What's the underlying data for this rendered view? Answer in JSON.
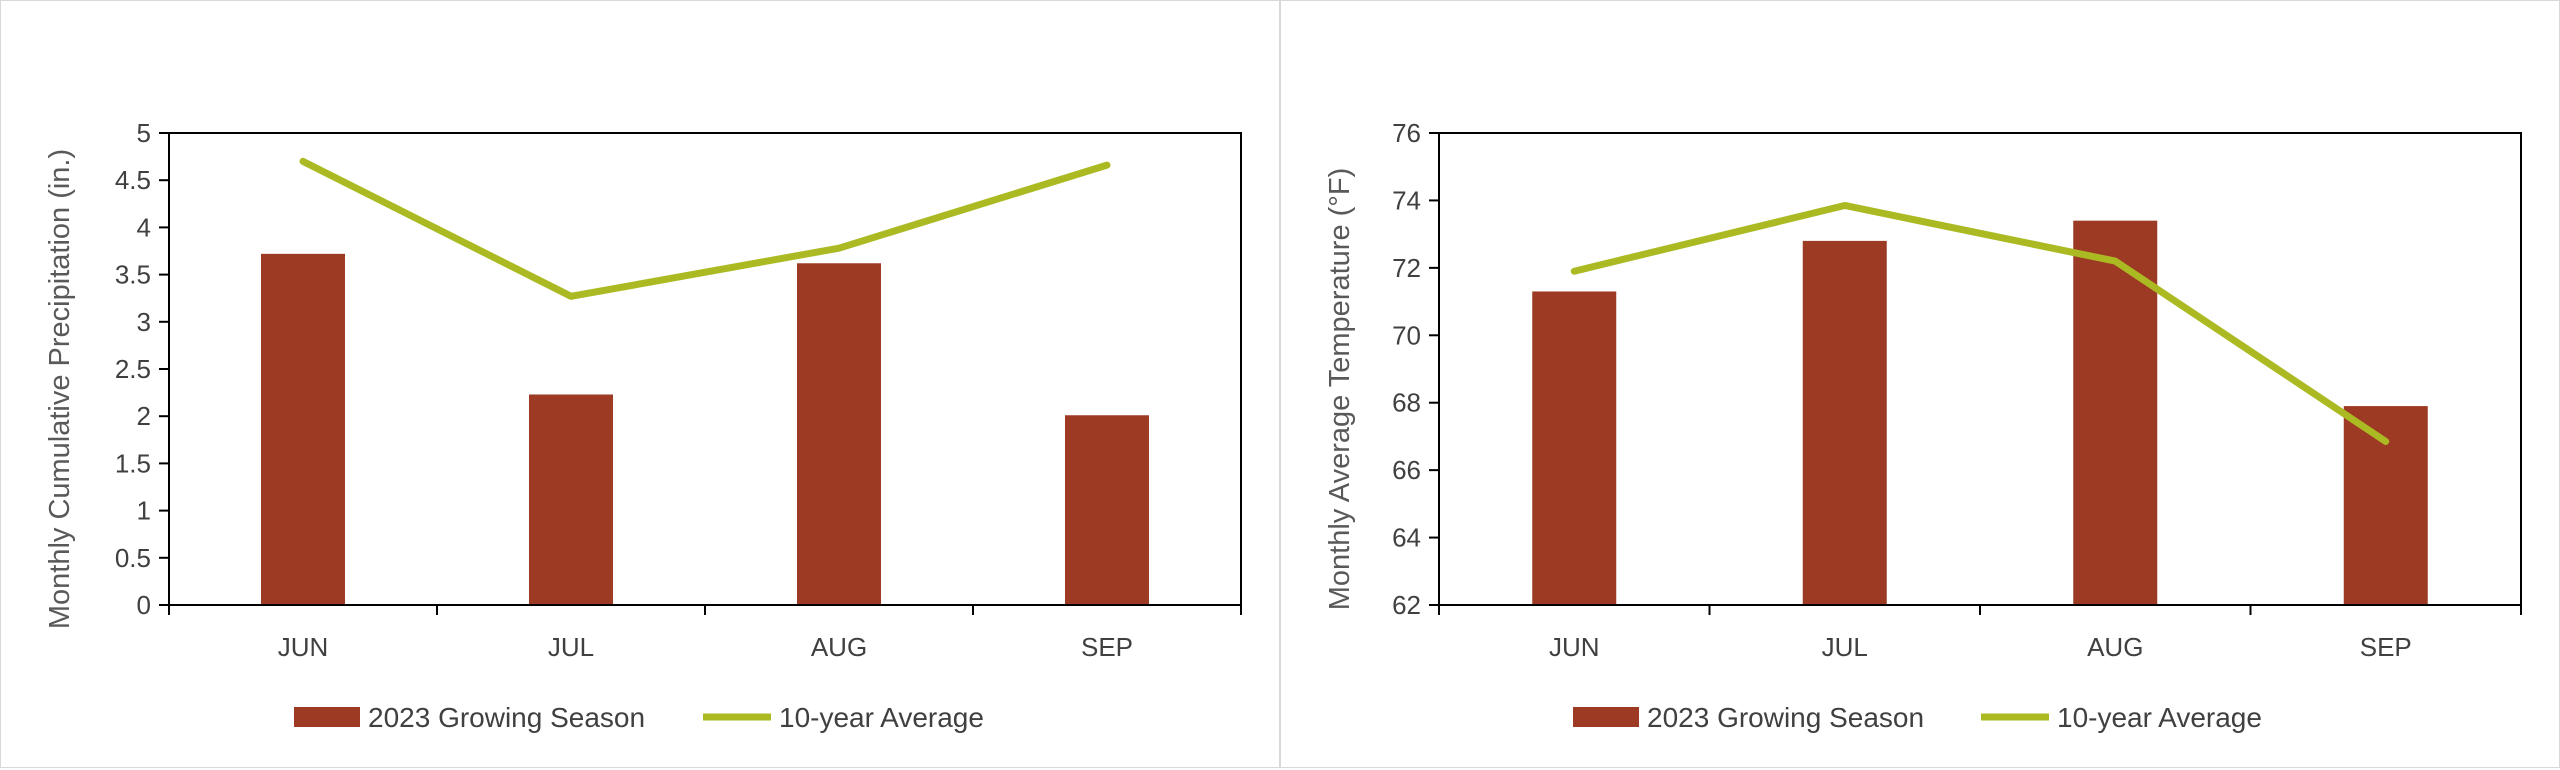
{
  "colors": {
    "bar": "#9c3a24",
    "line": "#abba22",
    "axis": "#000000",
    "text": "#404040"
  },
  "chart_data": [
    {
      "type": "bar",
      "categories": [
        "JUN",
        "JUL",
        "AUG",
        "SEP"
      ],
      "series": [
        {
          "name": "2023 Growing Season",
          "type": "bar",
          "values": [
            3.72,
            2.23,
            3.62,
            2.01
          ]
        },
        {
          "name": "10-year Average",
          "type": "line",
          "values": [
            4.7,
            3.27,
            3.78,
            4.66
          ]
        }
      ],
      "xlabel": "",
      "ylabel": "Monthly Cumulative Precipitation (in.)",
      "ylim": [
        0,
        5
      ],
      "yticks": [
        "0",
        "0.5",
        "1",
        "1.5",
        "2",
        "2.5",
        "3",
        "3.5",
        "4",
        "4.5",
        "5"
      ],
      "grid": false,
      "legend": "bottom"
    },
    {
      "type": "bar",
      "categories": [
        "JUN",
        "JUL",
        "AUG",
        "SEP"
      ],
      "series": [
        {
          "name": "2023 Growing Season",
          "type": "bar",
          "values": [
            71.3,
            72.8,
            73.4,
            67.9
          ]
        },
        {
          "name": "10-year Average",
          "type": "line",
          "values": [
            71.9,
            73.85,
            72.2,
            66.85
          ]
        }
      ],
      "xlabel": "",
      "ylabel": "Monthly Average Temperature (°F)",
      "ylim": [
        62,
        76
      ],
      "yticks": [
        "62",
        "64",
        "66",
        "68",
        "70",
        "72",
        "74",
        "76"
      ],
      "grid": false,
      "legend": "bottom"
    }
  ]
}
